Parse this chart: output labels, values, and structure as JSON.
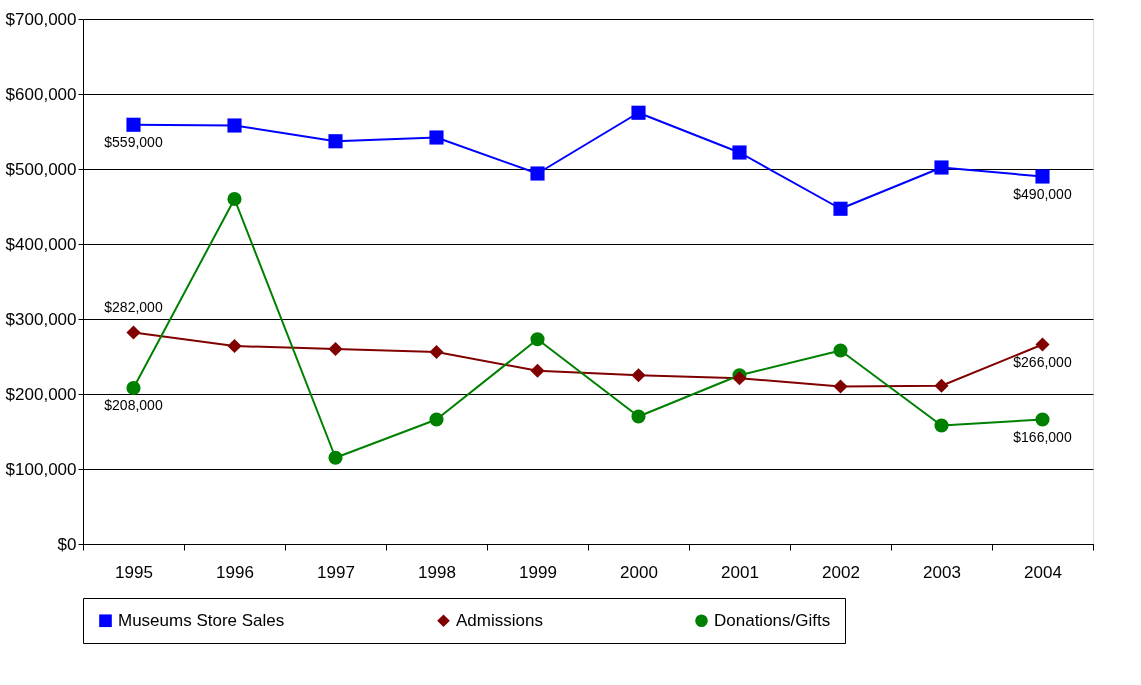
{
  "chart_data": {
    "type": "line",
    "categories": [
      "1995",
      "1996",
      "1997",
      "1998",
      "1999",
      "2000",
      "2001",
      "2002",
      "2003",
      "2004"
    ],
    "series": [
      {
        "name": "Museums Store Sales",
        "color": "#0000ff",
        "marker": "square",
        "values": [
          559000,
          558000,
          537000,
          542000,
          494000,
          575000,
          522000,
          447000,
          502000,
          490000
        ],
        "value_labels": [
          "$559,000",
          null,
          null,
          null,
          null,
          null,
          null,
          null,
          null,
          "$490,000"
        ]
      },
      {
        "name": "Admissions",
        "color": "#800000",
        "marker": "diamond",
        "values": [
          282000,
          264000,
          260000,
          256000,
          231000,
          225000,
          221000,
          210000,
          211000,
          266000
        ],
        "value_labels": [
          "$282,000",
          null,
          null,
          null,
          null,
          null,
          null,
          null,
          null,
          "$266,000"
        ]
      },
      {
        "name": "Donations/Gifts",
        "color": "#008000",
        "marker": "circle",
        "values": [
          208000,
          460000,
          115000,
          166000,
          273000,
          170000,
          225000,
          258000,
          158000,
          166000
        ],
        "value_labels": [
          "$208,000",
          null,
          null,
          null,
          null,
          null,
          null,
          null,
          null,
          "$166,000"
        ]
      }
    ],
    "ylim": [
      0,
      700000
    ],
    "yticks": [
      {
        "value": 0,
        "label": "$0"
      },
      {
        "value": 100000,
        "label": "$100,000"
      },
      {
        "value": 200000,
        "label": "$200,000"
      },
      {
        "value": 300000,
        "label": "$300,000"
      },
      {
        "value": 400000,
        "label": "$400,000"
      },
      {
        "value": 500000,
        "label": "$500,000"
      },
      {
        "value": 600000,
        "label": "$600,000"
      },
      {
        "value": 700000,
        "label": "$700,000"
      }
    ],
    "grid": "y",
    "legend": "bottom",
    "line_style": "solid"
  }
}
